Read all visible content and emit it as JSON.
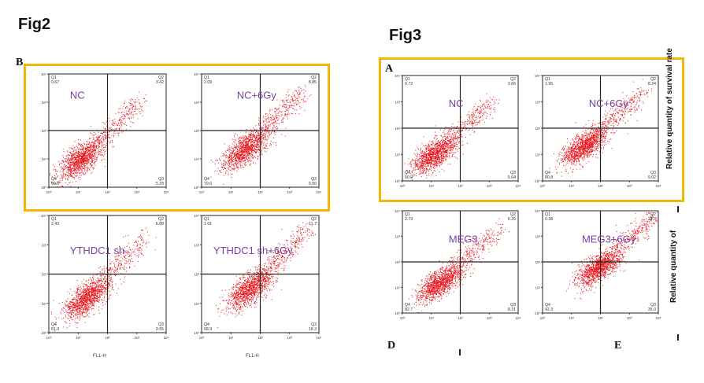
{
  "figures": {
    "fig2": {
      "title": "Fig2",
      "panel_letter": "B",
      "xaxis_label": "FL1-H"
    },
    "fig3": {
      "title": "Fig3",
      "panel_letter_top": "A",
      "panel_letter_bottom_left": "D",
      "panel_letter_bottom_right": "E",
      "side_label_top": "Relative quantity of survival rate",
      "side_label_bottom": "Relative quantity of"
    }
  },
  "colors": {
    "highlight_frame": "#f2b705",
    "dots": "#e8141c",
    "label_text": "#7b3fa0",
    "lines": "#222222"
  },
  "chart_data": [
    {
      "type": "scatter",
      "label": "NC",
      "quadrants": {
        "Q1": "0.67",
        "Q2": "3.42",
        "Q3": "5.29",
        "Q4": "90.6"
      },
      "xlim": [
        "10^0",
        "10^4"
      ],
      "ylim": [
        "10^0",
        "10^4"
      ],
      "xlabel": "",
      "ylabel": ""
    },
    {
      "type": "scatter",
      "label": "NC+6Gy",
      "quadrants": {
        "Q1": "2.09",
        "Q2": "8.85",
        "Q3": "9.50",
        "Q4": "79.6"
      },
      "xlim": [
        "10^0",
        "10^4"
      ],
      "ylim": [
        "10^0",
        "10^4"
      ],
      "xlabel": "",
      "ylabel": ""
    },
    {
      "type": "scatter",
      "label": "YTHDC1 sh",
      "quadrants": {
        "Q1": "2.43",
        "Q2": "6.88",
        "Q3": "9.65",
        "Q4": "81.0"
      },
      "xlim": [
        "10^0",
        "10^4"
      ],
      "ylim": [
        "10^0",
        "10^4"
      ],
      "xlabel": "FL1-H",
      "ylabel": ""
    },
    {
      "type": "scatter",
      "label": "YTHDC1 sh+6Gy",
      "quadrants": {
        "Q1": "1.01",
        "Q2": "11.7",
        "Q3": "18.3",
        "Q4": "68.9"
      },
      "xlim": [
        "10^0",
        "10^4"
      ],
      "ylim": [
        "10^0",
        "10^4"
      ],
      "xlabel": "FL1-H",
      "ylabel": ""
    },
    {
      "type": "scatter",
      "label": "NC",
      "quadrants": {
        "Q1": "0.72",
        "Q2": "3.66",
        "Q3": "5.64",
        "Q4": "90.0"
      },
      "xlim": [
        "10^0",
        "10^4"
      ],
      "ylim": [
        "10^0",
        "10^4"
      ],
      "xlabel": "",
      "ylabel": ""
    },
    {
      "type": "scatter",
      "label": "NC+6Gy",
      "quadrants": {
        "Q1": "1.95",
        "Q2": "8.24",
        "Q3": "9.02",
        "Q4": "80.8"
      },
      "xlim": [
        "10^0",
        "10^4"
      ],
      "ylim": [
        "10^0",
        "10^4"
      ],
      "xlabel": "",
      "ylabel": ""
    },
    {
      "type": "scatter",
      "label": "MEG3",
      "quadrants": {
        "Q1": "2.73",
        "Q2": "6.29",
        "Q3": "8.31",
        "Q4": "82.7"
      },
      "xlim": [
        "10^0",
        "10^4"
      ],
      "ylim": [
        "10^0",
        "10^4"
      ],
      "xlabel": "",
      "ylabel": ""
    },
    {
      "type": "scatter",
      "label": "MEG3+6Gy",
      "quadrants": {
        "Q1": "0.38",
        "Q2": "22.3",
        "Q3": "35.0",
        "Q4": "42.3"
      },
      "xlim": [
        "10^0",
        "10^4"
      ],
      "ylim": [
        "10^0",
        "10^4"
      ],
      "xlabel": "",
      "ylabel": ""
    }
  ]
}
